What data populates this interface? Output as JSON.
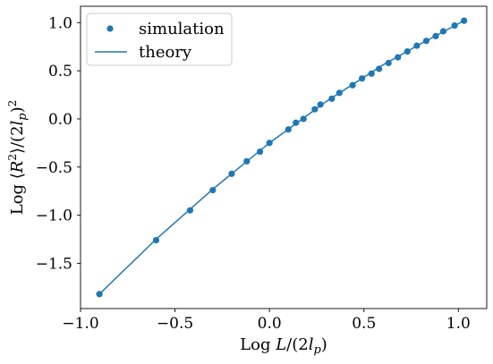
{
  "chart_data": {
    "type": "scatter",
    "xlabel": "Log L/(2l_p)",
    "ylabel": "Log ⟨R²⟩/(2l_p)²",
    "xlim": [
      -1.0,
      1.15
    ],
    "ylim": [
      -1.97,
      1.17
    ],
    "x_ticks": [
      -1.0,
      -0.5,
      0.0,
      0.5,
      1.0
    ],
    "x_tick_labels": [
      "−1.0",
      "−0.5",
      "0.0",
      "0.5",
      "1.0"
    ],
    "y_ticks": [
      -1.5,
      -1.0,
      -0.5,
      0.0,
      0.5,
      1.0
    ],
    "y_tick_labels": [
      "−1.5",
      "−1.0",
      "−0.5",
      "0.0",
      "0.5",
      "1.0"
    ],
    "legend_position": "top-left",
    "color": "#1f77b4",
    "series": [
      {
        "name": "simulation",
        "kind": "scatter",
        "x": [
          -0.9,
          -0.6,
          -0.42,
          -0.3,
          -0.2,
          -0.12,
          -0.05,
          0.0,
          0.1,
          0.14,
          0.18,
          0.24,
          0.27,
          0.33,
          0.37,
          0.44,
          0.49,
          0.54,
          0.58,
          0.63,
          0.68,
          0.73,
          0.78,
          0.83,
          0.88,
          0.92,
          0.98,
          1.03
        ],
        "y": [
          -1.82,
          -1.26,
          -0.95,
          -0.74,
          -0.57,
          -0.44,
          -0.34,
          -0.25,
          -0.11,
          -0.04,
          0.0,
          0.1,
          0.15,
          0.21,
          0.27,
          0.35,
          0.42,
          0.47,
          0.52,
          0.58,
          0.64,
          0.7,
          0.76,
          0.81,
          0.86,
          0.91,
          0.97,
          1.02
        ]
      },
      {
        "name": "theory",
        "kind": "line",
        "x": [
          -0.9,
          -0.6,
          -0.3,
          0.0,
          0.3,
          0.6,
          0.8,
          1.03
        ],
        "y": [
          -1.82,
          -1.25,
          -0.73,
          -0.25,
          0.18,
          0.56,
          0.78,
          1.02
        ]
      }
    ]
  }
}
